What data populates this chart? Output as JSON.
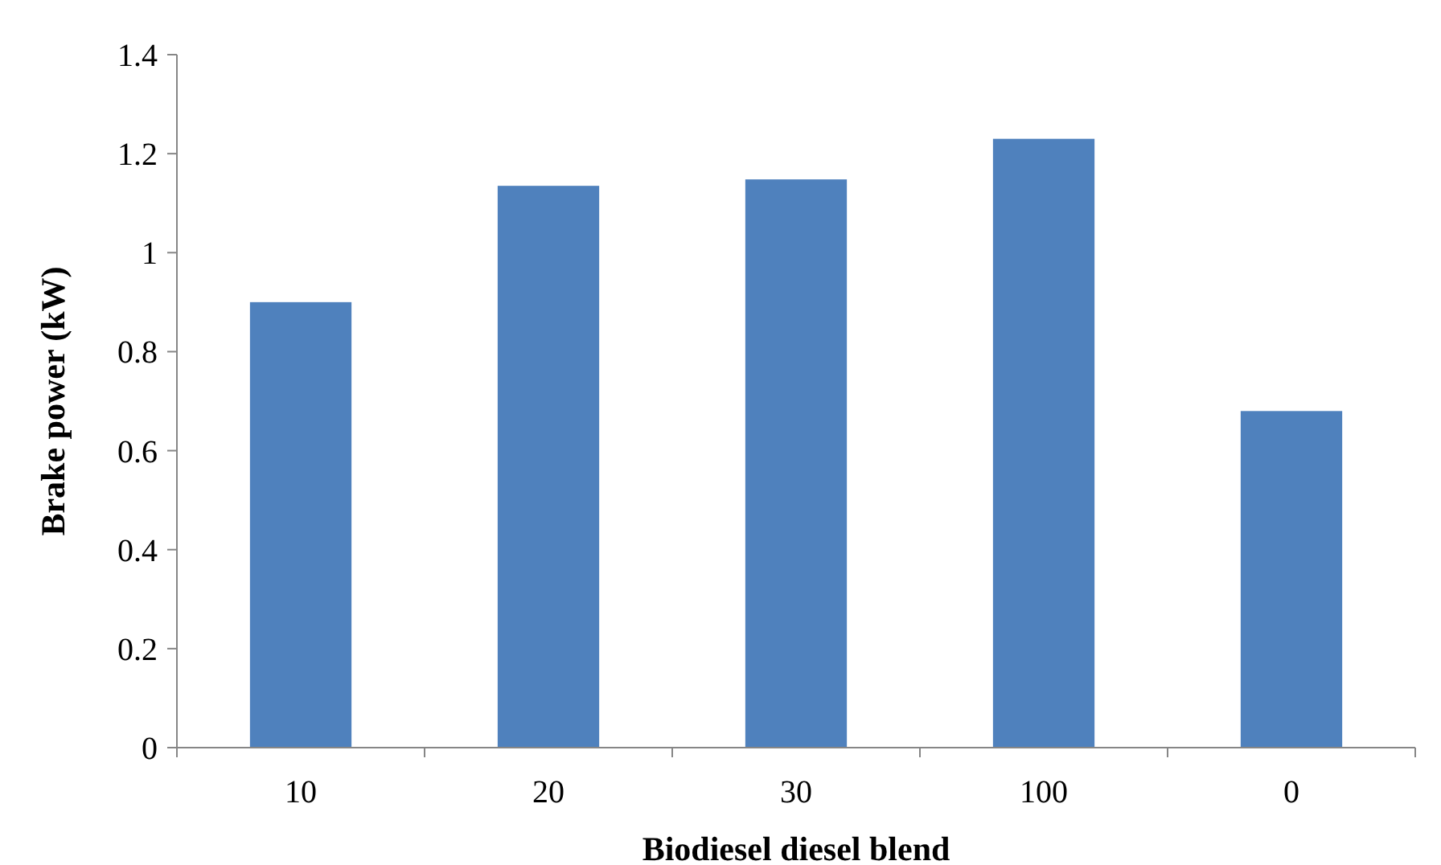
{
  "chart_data": {
    "type": "bar",
    "xlabel": "Biodiesel diesel blend",
    "ylabel": "Brake power (kW)",
    "categories": [
      "10",
      "20",
      "30",
      "100",
      "0"
    ],
    "values": [
      0.9,
      1.135,
      1.148,
      1.23,
      0.68
    ],
    "color": "#4f81bd",
    "ylim": [
      0,
      1.4
    ],
    "yticks": [
      0,
      0.2,
      0.4,
      0.6,
      0.8,
      1,
      1.2,
      1.4
    ],
    "grid": false
  }
}
